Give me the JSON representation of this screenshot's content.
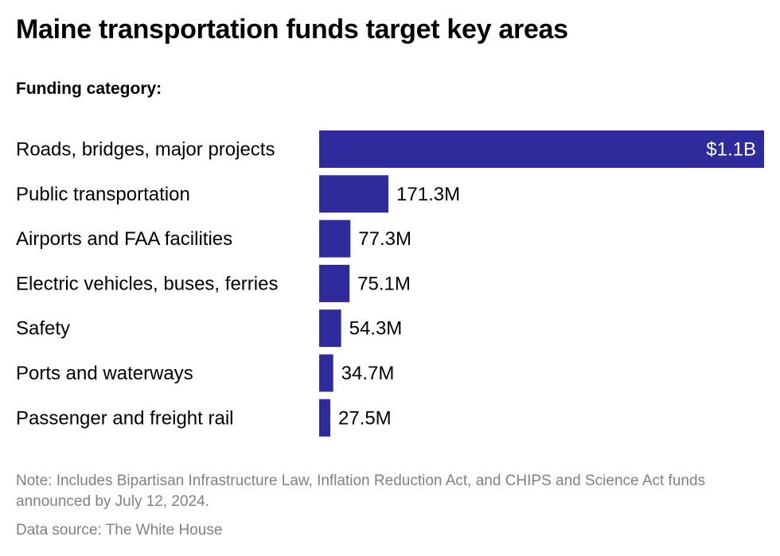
{
  "title": "Maine transportation funds target key areas",
  "subtitle": "Funding category:",
  "note": "Note: Includes Bipartisan Infrastructure Law, Inflation Reduction Act, and CHIPS and Science Act funds announced by July 12, 2024.",
  "source": "Data source: The White House",
  "colors": {
    "bar": "#2e2c9c",
    "inside_label": "#ffffff",
    "outside_label": "#000000",
    "category_label": "#000000",
    "footer_text": "#808080"
  },
  "chart_data": {
    "type": "bar",
    "orientation": "horizontal",
    "unit": "USD",
    "categories": [
      "Roads, bridges, major projects",
      "Public transportation",
      "Airports and FAA facilities",
      "Electric vehicles, buses, ferries",
      "Safety",
      "Ports and waterways",
      "Passenger and freight rail"
    ],
    "values": [
      1100,
      171.3,
      77.3,
      75.1,
      54.3,
      34.7,
      27.5
    ],
    "value_units": "millions of dollars",
    "labels": [
      "$1.1B",
      "171.3M",
      "77.3M",
      "75.1M",
      "54.3M",
      "34.7M",
      "27.5M"
    ],
    "xlim": [
      0,
      1100
    ],
    "grid": false,
    "legend": "none"
  }
}
